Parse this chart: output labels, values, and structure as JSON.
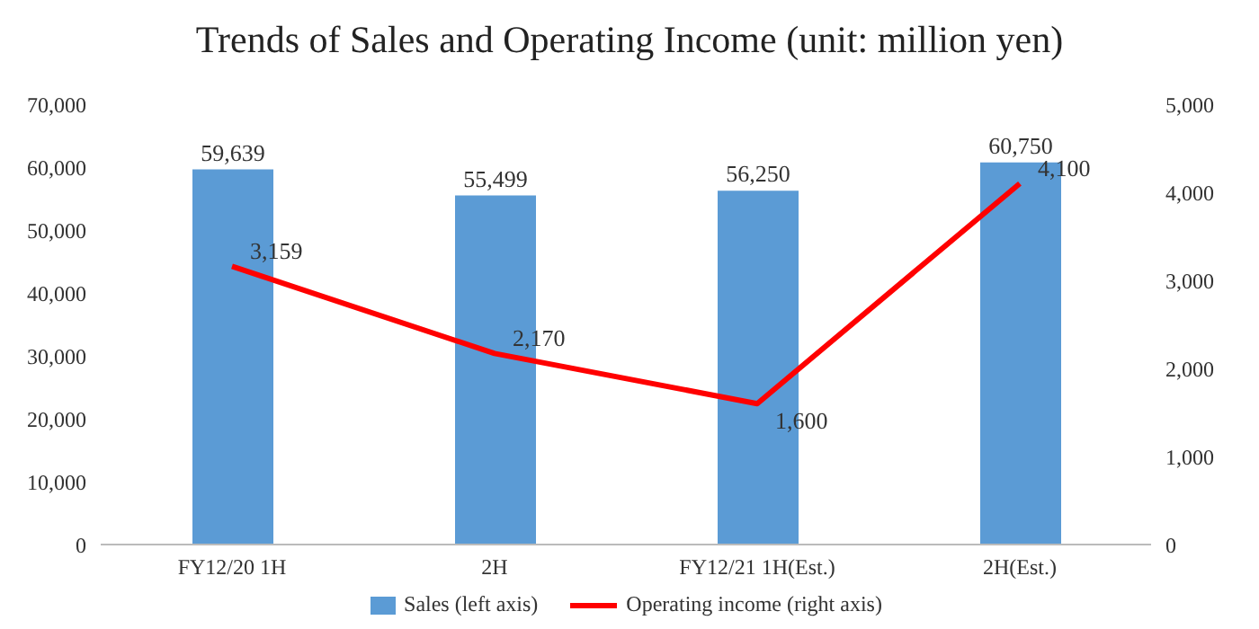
{
  "chart_data": {
    "type": "bar",
    "title": "Trends of Sales and Operating Income (unit: million yen)",
    "categories": [
      "FY12/20 1H",
      "2H",
      "FY12/21 1H(Est.)",
      "2H(Est.)"
    ],
    "series": [
      {
        "name": "Sales (left axis)",
        "color": "#5b9bd5",
        "values": [
          59639,
          55499,
          56250,
          60750
        ],
        "value_labels": [
          "59,639",
          "55,499",
          "56,250",
          "60,750"
        ]
      },
      {
        "name": "Operating income (right axis)",
        "type": "line",
        "axis": "y2",
        "color": "#ff0000",
        "values": [
          3159,
          2170,
          1600,
          4100
        ],
        "value_labels": [
          "3,159",
          "2,170",
          "1,600",
          "4,100"
        ]
      }
    ],
    "ylim": [
      0,
      70000
    ],
    "yticks": [
      0,
      {
        "value": 10000,
        "label": "10,000"
      },
      {
        "value": 20000,
        "label": "20,000"
      },
      {
        "value": 30000,
        "label": "30,000"
      },
      {
        "value": 40000,
        "label": "40,000"
      },
      {
        "value": 50000,
        "label": "50,000"
      },
      {
        "value": 60000,
        "label": "60,000"
      },
      {
        "value": 70000,
        "label": "70,000"
      }
    ],
    "y2lim": [
      0,
      5000
    ],
    "y2ticks": [
      0,
      {
        "value": 1000,
        "label": "1,000"
      },
      {
        "value": 2000,
        "label": "2,000"
      },
      {
        "value": 3000,
        "label": "3,000"
      },
      {
        "value": 4000,
        "label": "4,000"
      },
      {
        "value": 5000,
        "label": "5,000"
      }
    ],
    "legend": "bottom",
    "marker": "none",
    "line_style": "solid"
  }
}
